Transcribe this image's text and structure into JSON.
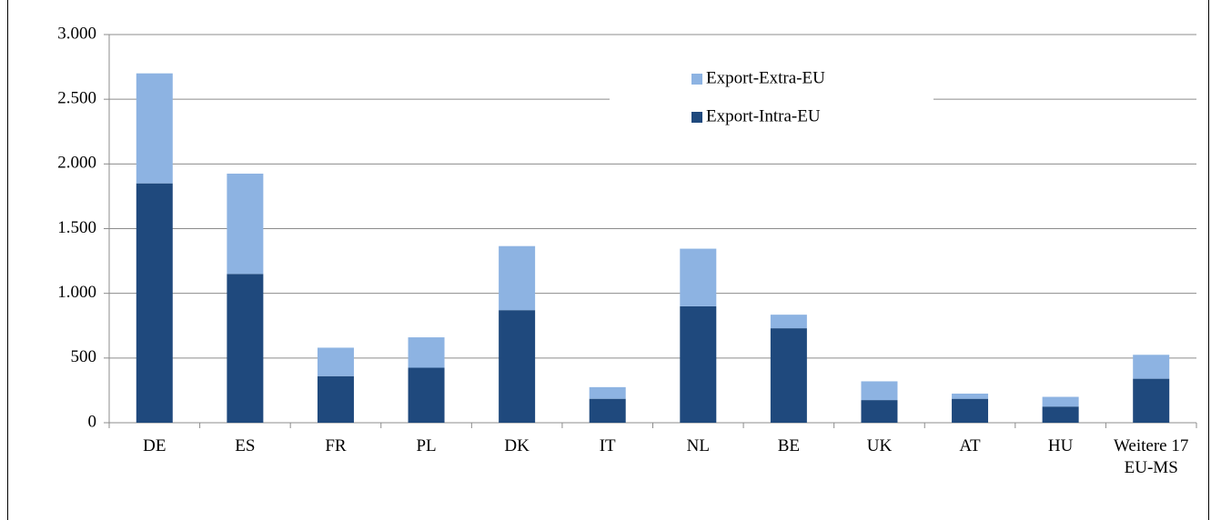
{
  "chart_data": {
    "type": "stacked-bar",
    "categories": [
      "DE",
      "ES",
      "FR",
      "PL",
      "DK",
      "IT",
      "NL",
      "BE",
      "UK",
      "AT",
      "HU",
      "Weitere 17 EU-MS"
    ],
    "series": [
      {
        "name": "Export-Intra-EU",
        "color": "#1f497d",
        "values": [
          1850,
          1150,
          360,
          425,
          870,
          185,
          900,
          730,
          175,
          185,
          125,
          340
        ]
      },
      {
        "name": "Export-Extra-EU",
        "color": "#8db3e2",
        "values": [
          850,
          775,
          220,
          235,
          495,
          90,
          445,
          105,
          145,
          40,
          75,
          185
        ]
      }
    ],
    "ylim": [
      0,
      3000
    ],
    "yticks": [
      0,
      500,
      {
        "value": 1000,
        "label": "1.000"
      },
      {
        "value": 1500,
        "label": "1.500"
      },
      {
        "value": 2000,
        "label": "2.000"
      },
      {
        "value": 2500,
        "label": "2.500"
      },
      {
        "value": 3000,
        "label": "3.000"
      }
    ],
    "grid": true,
    "legend": "top-center"
  }
}
